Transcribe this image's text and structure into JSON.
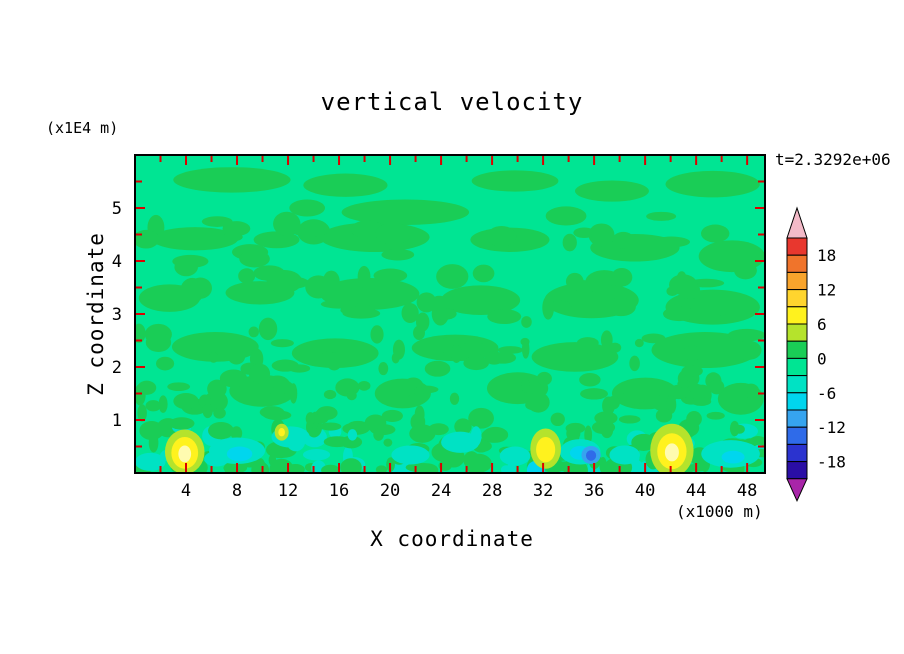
{
  "chart_data": {
    "type": "heatmap",
    "title": "vertical velocity",
    "time_annotation": "t=2.3292e+06",
    "xlabel": "X coordinate",
    "x_unit": "(x1000 m)",
    "ylabel": "Z coordinate",
    "y_unit": "(x1E4 m)",
    "xlim": [
      0,
      49.4
    ],
    "ylim": [
      0,
      6
    ],
    "x_major_ticks": [
      4,
      8,
      12,
      16,
      20,
      24,
      28,
      32,
      36,
      40,
      44,
      48
    ],
    "x_minor_step": 2,
    "y_major_ticks": [
      1,
      2,
      3,
      4,
      5
    ],
    "y_minor_step": 0.5,
    "tick_color": "#DD0000",
    "frame_color": "#000000",
    "description": "Filled contour plot of vertical velocity; field is near 0 (-3..+3) over most of the domain, with near-surface updraft cores (+6..+12) at x~4, 32 and 42, and a small downdraft (-9..-15) at x~36, z~0.3.",
    "colorbar": {
      "labels": [
        "18",
        "12",
        "6",
        "0",
        "-6",
        "-12",
        "-18"
      ],
      "label_values": [
        18,
        12,
        6,
        0,
        -6,
        -12,
        -18
      ],
      "level_min": -21,
      "level_max": 21,
      "level_step": 3,
      "segments_top_to_bottom": [
        "#E8372E",
        "#F0742B",
        "#F9A42C",
        "#FFD52E",
        "#FFF21E",
        "#B5E32C",
        "#1ACD56",
        "#00E593",
        "#00E2C4",
        "#00D6EE",
        "#36A4EF",
        "#2F6BE9",
        "#2B33CF",
        "#2A0EA5"
      ],
      "arrow_top_color": "#F3BAC8",
      "arrow_bottom_color": "#A825A8"
    },
    "field": {
      "background_color": "#00E593",
      "background_value_range": "-3..0",
      "palette": {
        "g": "#1ACD56",
        "t": "#00E2C4",
        "c": "#00D6EE",
        "yg": "#B5E32C",
        "y": "#FFF21E",
        "core": "#FFFBB0",
        "lb": "#36A4EF",
        "b": "#2F6BE9"
      },
      "palette_value_ranges": {
        "g": "0..3",
        "t": "-6..-3",
        "c": "-9..-6",
        "yg": "3..6",
        "y": "6..9",
        "core": "9..12",
        "lb": "-12..-9",
        "b": "-15..-12"
      },
      "patches": [
        [
          7.6,
          5.53,
          4.6,
          0.24
        ],
        [
          16.5,
          5.43,
          3.3,
          0.22
        ],
        [
          29.8,
          5.51,
          3.4,
          0.2
        ],
        [
          37.4,
          5.32,
          2.9,
          0.2
        ],
        [
          45.3,
          5.45,
          3.7,
          0.25
        ],
        [
          13.5,
          5.0,
          1.4,
          0.16
        ],
        [
          33.8,
          4.85,
          1.6,
          0.18
        ],
        [
          21.2,
          4.92,
          5.0,
          0.24
        ],
        [
          4.7,
          4.42,
          3.4,
          0.22
        ],
        [
          11.1,
          4.4,
          1.8,
          0.16
        ],
        [
          18.8,
          4.45,
          4.3,
          0.28
        ],
        [
          29.4,
          4.4,
          3.1,
          0.23
        ],
        [
          39.2,
          4.25,
          3.5,
          0.26
        ],
        [
          46.8,
          4.09,
          2.6,
          0.3
        ],
        [
          2.7,
          3.3,
          2.4,
          0.26
        ],
        [
          9.8,
          3.4,
          2.7,
          0.22
        ],
        [
          18.4,
          3.38,
          3.9,
          0.3
        ],
        [
          27.1,
          3.26,
          3.1,
          0.28
        ],
        [
          35.8,
          3.26,
          3.7,
          0.34
        ],
        [
          45.3,
          3.13,
          3.7,
          0.33
        ],
        [
          6.3,
          2.38,
          3.4,
          0.28
        ],
        [
          15.7,
          2.26,
          3.4,
          0.28
        ],
        [
          25.1,
          2.36,
          3.4,
          0.25
        ],
        [
          34.5,
          2.19,
          3.4,
          0.28
        ],
        [
          44.7,
          2.32,
          4.2,
          0.34
        ],
        [
          10.0,
          1.55,
          2.6,
          0.3
        ],
        [
          21.0,
          1.5,
          2.2,
          0.28
        ],
        [
          30.0,
          1.6,
          2.4,
          0.3
        ],
        [
          40.0,
          1.5,
          2.6,
          0.3
        ],
        [
          47.5,
          1.4,
          1.8,
          0.3
        ]
      ],
      "spots": [
        [
          8.0,
          0.42,
          2.2,
          0.25,
          "t"
        ],
        [
          12.2,
          0.68,
          1.5,
          0.2,
          "t"
        ],
        [
          21.6,
          0.34,
          1.5,
          0.18,
          "t"
        ],
        [
          25.5,
          0.58,
          1.5,
          0.2,
          "t"
        ],
        [
          29.8,
          0.32,
          1.2,
          0.18,
          "t"
        ],
        [
          34.9,
          0.4,
          1.6,
          0.24,
          "t"
        ],
        [
          38.4,
          0.34,
          1.2,
          0.18,
          "t"
        ],
        [
          46.7,
          0.36,
          2.3,
          0.26,
          "t"
        ],
        [
          1.2,
          0.21,
          1.2,
          0.17,
          "t"
        ],
        [
          8.2,
          0.36,
          1.0,
          0.14,
          "c"
        ],
        [
          34.9,
          0.38,
          0.8,
          0.13,
          "c"
        ],
        [
          46.9,
          0.3,
          0.9,
          0.12,
          "c"
        ],
        [
          3.9,
          0.4,
          1.55,
          0.42,
          "yg"
        ],
        [
          3.9,
          0.38,
          1.05,
          0.3,
          "y"
        ],
        [
          3.9,
          0.36,
          0.5,
          0.16,
          "core"
        ],
        [
          11.5,
          0.77,
          0.55,
          0.16,
          "yg"
        ],
        [
          11.5,
          0.77,
          0.26,
          0.08,
          "y"
        ],
        [
          32.2,
          0.46,
          1.2,
          0.38,
          "yg"
        ],
        [
          32.2,
          0.44,
          0.75,
          0.24,
          "y"
        ],
        [
          42.1,
          0.43,
          1.7,
          0.5,
          "yg"
        ],
        [
          42.1,
          0.41,
          1.15,
          0.34,
          "y"
        ],
        [
          42.1,
          0.39,
          0.55,
          0.17,
          "core"
        ],
        [
          35.76,
          0.34,
          0.75,
          0.17,
          "lb"
        ],
        [
          35.76,
          0.33,
          0.4,
          0.1,
          "b"
        ]
      ],
      "speckles": [
        {
          "seed": 42,
          "count": 260,
          "x_min": 0.2,
          "x_max": 49.2,
          "z_min": 0.05,
          "z_max": 2.65,
          "z_pow": 2.0,
          "rx": [
            0.28,
            1.1
          ],
          "rz": [
            0.07,
            0.2
          ],
          "t_prob": 0.2,
          "t_max_z": 0.95,
          "c_prob": 0.06,
          "c_max_z": 0.5
        },
        {
          "seed": 7,
          "count": 70,
          "x_min": 0.2,
          "x_max": 49.2,
          "z_min": 2.6,
          "z_max": 4.9,
          "z_pow": 1.0,
          "rx": [
            0.4,
            1.5
          ],
          "rz": [
            0.08,
            0.24
          ],
          "t_prob": 0,
          "t_max_z": 0,
          "c_prob": 0,
          "c_max_z": 0
        }
      ]
    }
  }
}
